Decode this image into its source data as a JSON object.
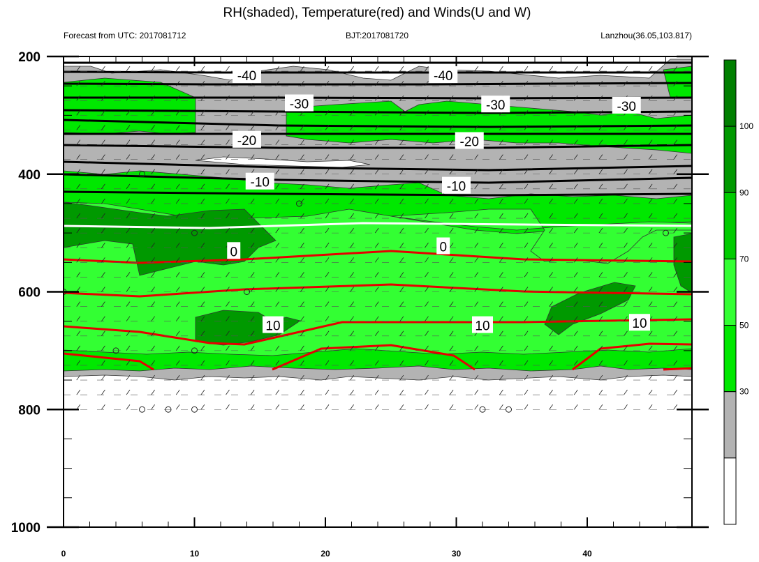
{
  "chart_data": {
    "type": "heatmap",
    "title": "RH(shaded), Temperature(red) and Winds(U and W)",
    "subtitle_left": "Forecast from UTC: 2017081712",
    "subtitle_center": "BJT:2017081720",
    "subtitle_right": "Lanzhou(36.05,103.817)",
    "xlabel": "",
    "ylabel": "",
    "x_range": [
      0,
      48
    ],
    "y_range": [
      200,
      1000
    ],
    "y_ticks": [
      200,
      400,
      600,
      800,
      1000
    ],
    "x_ticks": [
      0,
      10,
      20,
      30,
      40
    ],
    "shading": "RH",
    "colorbar": {
      "levels": [
        30,
        50,
        70,
        90,
        100
      ],
      "colors": [
        "#ffffff",
        "#b3b3b3",
        "#00e800",
        "#33ff33",
        "#00cc00",
        "#009900",
        "#007f00"
      ]
    },
    "temperature_contours": {
      "levels": [
        -40,
        -30,
        -20,
        -10,
        0,
        10
      ],
      "labels": [
        {
          "text": "-40",
          "x": 14,
          "p": 232
        },
        {
          "text": "-40",
          "x": 29,
          "p": 232
        },
        {
          "text": "-30",
          "x": 18,
          "p": 280
        },
        {
          "text": "-30",
          "x": 33,
          "p": 282
        },
        {
          "text": "-30",
          "x": 43,
          "p": 284
        },
        {
          "text": "-20",
          "x": 14,
          "p": 342
        },
        {
          "text": "-20",
          "x": 31,
          "p": 344
        },
        {
          "text": "-10",
          "x": 15,
          "p": 413
        },
        {
          "text": "-10",
          "x": 30,
          "p": 420
        },
        {
          "text": "0",
          "x": 13,
          "p": 531
        },
        {
          "text": "0",
          "x": 29,
          "p": 523
        },
        {
          "text": "10",
          "x": 16,
          "p": 657
        },
        {
          "text": "10",
          "x": 32,
          "p": 657
        },
        {
          "text": "10",
          "x": 44,
          "p": 653
        }
      ]
    }
  }
}
